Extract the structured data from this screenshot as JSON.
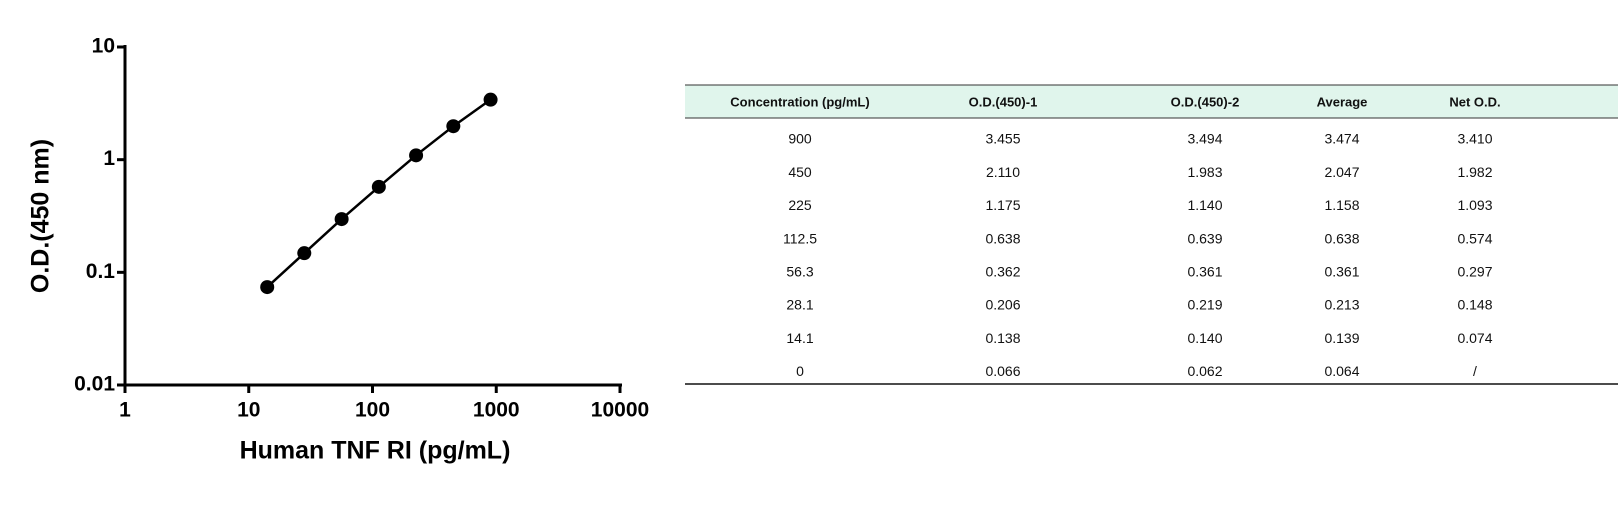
{
  "chart_data": {
    "type": "line",
    "xlabel": "Human TNF RI (pg/mL)",
    "ylabel": "O.D.(450 nm)",
    "x": [
      14.1,
      28.1,
      56.3,
      112.5,
      225,
      450,
      900
    ],
    "values": [
      0.074,
      0.148,
      0.297,
      0.574,
      1.093,
      1.982,
      3.41
    ],
    "color": "#000000",
    "xscale": "log",
    "yscale": "log",
    "xlim": [
      1,
      10000
    ],
    "xticks": [
      1,
      10,
      100,
      1000,
      10000
    ],
    "ylim": [
      0.01,
      10
    ],
    "yticks": [
      0.01,
      0.1,
      1,
      10
    ]
  },
  "table": {
    "header": [
      "Concentration (pg/mL)",
      "O.D.(450)-1",
      "O.D.(450)-2",
      "Average",
      "Net O.D."
    ],
    "rows": [
      [
        "900",
        "3.455",
        "3.494",
        "3.474",
        "3.410"
      ],
      [
        "450",
        "2.110",
        "1.983",
        "2.047",
        "1.982"
      ],
      [
        "225",
        "1.175",
        "1.140",
        "1.158",
        "1.093"
      ],
      [
        "112.5",
        "0.638",
        "0.639",
        "0.638",
        "0.574"
      ],
      [
        "56.3",
        "0.362",
        "0.361",
        "0.361",
        "0.297"
      ],
      [
        "28.1",
        "0.206",
        "0.219",
        "0.213",
        "0.148"
      ],
      [
        "14.1",
        "0.138",
        "0.140",
        "0.139",
        "0.074"
      ],
      [
        "0",
        "0.066",
        "0.062",
        "0.064",
        "/"
      ]
    ]
  }
}
